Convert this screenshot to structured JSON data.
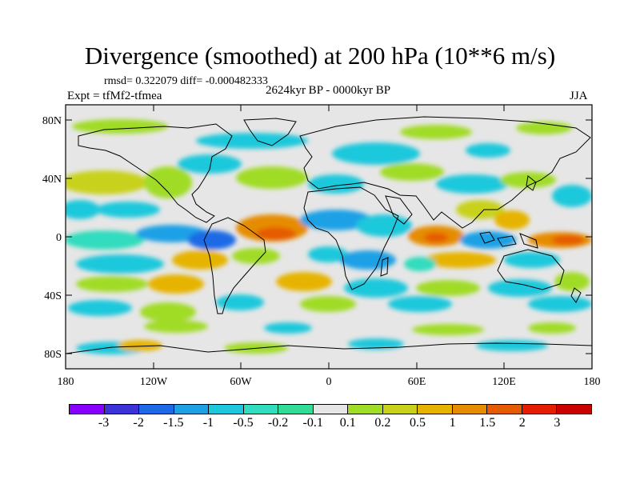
{
  "header": {
    "title": "Divergence (smoothed) at 200 hPa (10**6 m/s)",
    "stats": "rmsd= 0.322079 diff= -0.000482333",
    "period": "2624kyr BP - 0000kyr BP",
    "experiment": "Expt = tfMf2-tfmea",
    "season": "JJA"
  },
  "map": {
    "lat_labels": [
      "80N",
      "40N",
      "0",
      "40S",
      "80S"
    ],
    "lon_labels": [
      "180",
      "120W",
      "60W",
      "0",
      "60E",
      "120E",
      "180"
    ],
    "background_color": "#e6e6e6"
  },
  "colorbar": {
    "labels": [
      "-3",
      "-2",
      "-1.5",
      "-1",
      "-0.5",
      "-0.2",
      "-0.1",
      "0.1",
      "0.2",
      "0.5",
      "1",
      "1.5",
      "2",
      "3"
    ],
    "colors": [
      "#8a00ff",
      "#3c32d8",
      "#1e6ae6",
      "#1ea0e6",
      "#1ec8dc",
      "#32dcbe",
      "#32dc96",
      "#e6e6e6",
      "#a0dc28",
      "#c8d21e",
      "#e6b400",
      "#e68c00",
      "#e65a00",
      "#e61e00",
      "#c80000"
    ]
  }
}
